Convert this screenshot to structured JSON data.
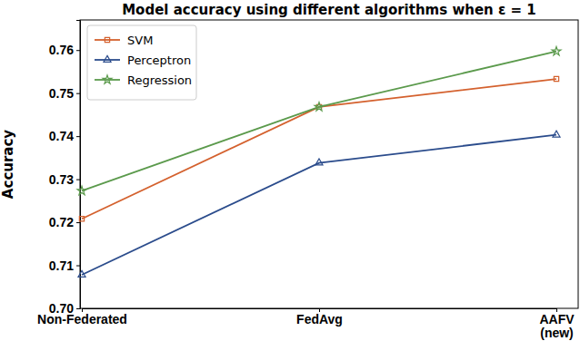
{
  "chart_data": {
    "type": "line",
    "title": "Model accuracy using different algorithms when ε = 1",
    "y_label": "Accuracy",
    "categories": [
      "Non-Federated",
      "FedAvg",
      "AAFV\n(new)"
    ],
    "series": [
      {
        "name": "SVM",
        "color": "#d4612e",
        "marker": "square",
        "values": [
          0.7208,
          0.7468,
          0.7533
        ]
      },
      {
        "name": "Perceptron",
        "color": "#2b4c8c",
        "marker": "triangle",
        "values": [
          0.7078,
          0.7338,
          0.7403
        ]
      },
      {
        "name": "Regression",
        "color": "#5b9a4c",
        "marker": "star",
        "values": [
          0.7273,
          0.7468,
          0.7597
        ]
      }
    ],
    "ylim": [
      0.7,
      0.767
    ],
    "yticks": [
      {
        "value": 0.7,
        "label": "0.70"
      },
      0.71,
      0.72,
      0.73,
      0.74,
      0.75,
      0.76
    ],
    "legend": "upper left",
    "grid": false
  }
}
